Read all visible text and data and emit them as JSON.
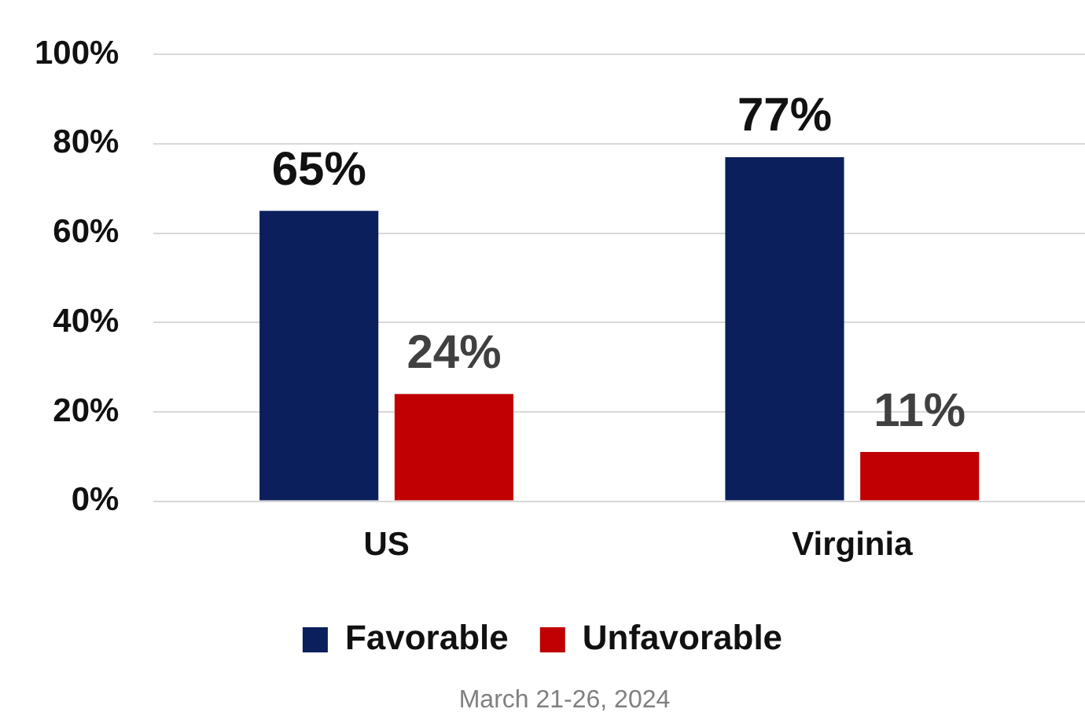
{
  "chart_data": {
    "type": "bar",
    "categories": [
      "US",
      "Virginia"
    ],
    "series": [
      {
        "name": "Favorable",
        "color": "#0b1f5c",
        "values": [
          65,
          77
        ],
        "value_labels": [
          "65%",
          "77%"
        ]
      },
      {
        "name": "Unfavorable",
        "color": "#c00000",
        "values": [
          24,
          11
        ],
        "value_labels": [
          "24%",
          "11%"
        ]
      }
    ],
    "ylim": [
      0,
      100
    ],
    "yticks": [
      {
        "value": 0,
        "label": "0%"
      },
      {
        "value": 20,
        "label": "20%"
      },
      {
        "value": 40,
        "label": "40%"
      },
      {
        "value": 60,
        "label": "60%"
      },
      {
        "value": 80,
        "label": "80%"
      },
      {
        "value": 100,
        "label": "100%"
      }
    ],
    "grid": "y",
    "legend": "bottom",
    "annotations": [
      "March 21-26, 2024"
    ]
  }
}
